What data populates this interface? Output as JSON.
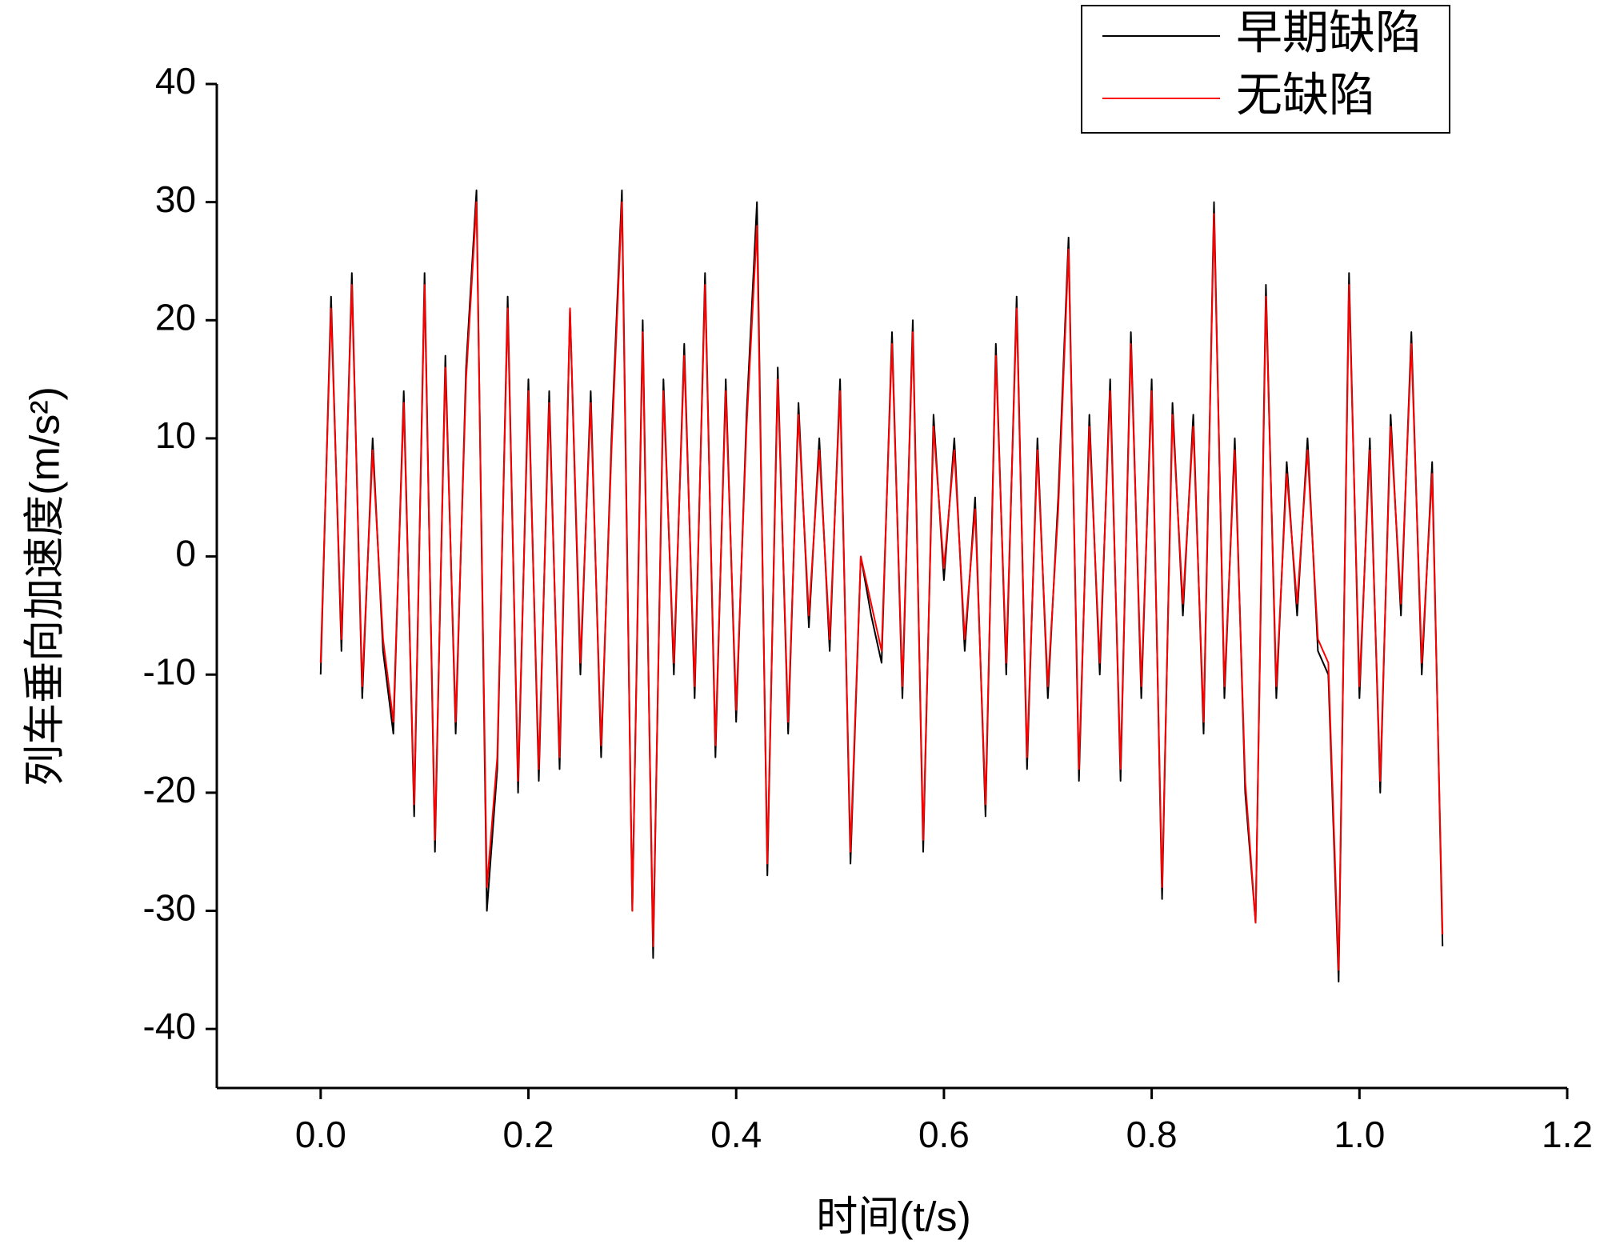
{
  "chart_data": {
    "type": "line",
    "x_label": "时间(t/s)",
    "y_label": "列车垂向加速度(m/s²)",
    "xlim": [
      -0.1,
      1.2
    ],
    "ylim": [
      -45,
      40
    ],
    "xticks": [
      {
        "value": 0,
        "label": "0.0"
      },
      {
        "value": 0.2,
        "label": "0.2"
      },
      {
        "value": 0.4,
        "label": "0.4"
      },
      {
        "value": 0.6,
        "label": "0.6"
      },
      {
        "value": 0.8,
        "label": "0.8"
      },
      {
        "value": 1,
        "label": "1.0"
      },
      {
        "value": 1.2,
        "label": "1.2"
      }
    ],
    "yticks": [
      -40,
      -30,
      -20,
      -10,
      0,
      10,
      20,
      30,
      40
    ],
    "x": [
      0,
      0.01,
      0.02,
      0.03,
      0.04,
      0.05,
      0.06,
      0.07,
      0.08,
      0.09,
      0.1,
      0.11,
      0.12,
      0.13,
      0.14,
      0.15,
      0.16,
      0.17,
      0.18,
      0.19,
      0.2,
      0.21,
      0.22,
      0.23,
      0.24,
      0.25,
      0.26,
      0.27,
      0.28,
      0.29,
      0.3,
      0.31,
      0.32,
      0.33,
      0.34,
      0.35,
      0.36,
      0.37,
      0.38,
      0.39,
      0.4,
      0.41,
      0.42,
      0.43,
      0.44,
      0.45,
      0.46,
      0.47,
      0.48,
      0.49,
      0.5,
      0.51,
      0.52,
      0.53,
      0.54,
      0.55,
      0.56,
      0.57,
      0.58,
      0.59,
      0.6,
      0.61,
      0.62,
      0.63,
      0.64,
      0.65,
      0.66,
      0.67,
      0.68,
      0.69,
      0.7,
      0.71,
      0.72,
      0.73,
      0.74,
      0.75,
      0.76,
      0.77,
      0.78,
      0.79,
      0.8,
      0.81,
      0.82,
      0.83,
      0.84,
      0.85,
      0.86,
      0.87,
      0.88,
      0.89,
      0.9,
      0.91,
      0.92,
      0.93,
      0.94,
      0.95,
      0.96,
      0.97,
      0.98,
      0.99,
      1,
      1.01,
      1.02,
      1.03,
      1.04,
      1.05,
      1.06,
      1.07,
      1.08
    ],
    "series": [
      {
        "name": "早期缺陷",
        "color": "#000000",
        "values": [
          -10,
          22,
          -8,
          24,
          -12,
          10,
          -8,
          -15,
          14,
          -22,
          24,
          -25,
          17,
          -15,
          16,
          31,
          -30,
          -18,
          22,
          -20,
          15,
          -19,
          14,
          -18,
          21,
          -10,
          14,
          -17,
          10,
          31,
          -30,
          20,
          -34,
          15,
          -10,
          18,
          -12,
          24,
          -17,
          15,
          -14,
          12,
          30,
          -27,
          16,
          -15,
          13,
          -6,
          10,
          -8,
          15,
          -26,
          0,
          -5,
          -9,
          19,
          -12,
          20,
          -25,
          12,
          -2,
          10,
          -8,
          5,
          -22,
          18,
          -10,
          22,
          -18,
          10,
          -12,
          5,
          27,
          -19,
          12,
          -10,
          15,
          -19,
          19,
          -12,
          15,
          -29,
          13,
          -5,
          12,
          -15,
          30,
          -12,
          10,
          -20,
          -31,
          23,
          -12,
          8,
          -5,
          10,
          -8,
          -10,
          -36,
          24,
          -12,
          10,
          -20,
          12,
          -5,
          19,
          -10,
          8,
          -33
        ]
      },
      {
        "name": "无缺陷",
        "color": "#ff0000",
        "values": [
          -9,
          21,
          -7,
          23,
          -11,
          9,
          -7,
          -14,
          13,
          -21,
          23,
          -24,
          16,
          -14,
          15,
          30,
          -28,
          -17,
          21,
          -19,
          14,
          -18,
          13,
          -17,
          21,
          -9,
          13,
          -16,
          9,
          30,
          -30,
          19,
          -33,
          14,
          -9,
          17,
          -11,
          23,
          -16,
          14,
          -13,
          11,
          28,
          -26,
          15,
          -14,
          12,
          -5,
          9,
          -7,
          14,
          -25,
          0,
          -4,
          -8,
          18,
          -11,
          19,
          -24,
          11,
          -1,
          9,
          -7,
          4,
          -21,
          17,
          -9,
          21,
          -17,
          9,
          -11,
          4,
          26,
          -18,
          11,
          -9,
          14,
          -18,
          18,
          -11,
          14,
          -28,
          12,
          -4,
          11,
          -14,
          29,
          -11,
          9,
          -19,
          -31,
          22,
          -11,
          7,
          -4,
          9,
          -7,
          -9,
          -35,
          23,
          -11,
          9,
          -19,
          11,
          -4,
          18,
          -9,
          7,
          -32
        ]
      }
    ]
  }
}
